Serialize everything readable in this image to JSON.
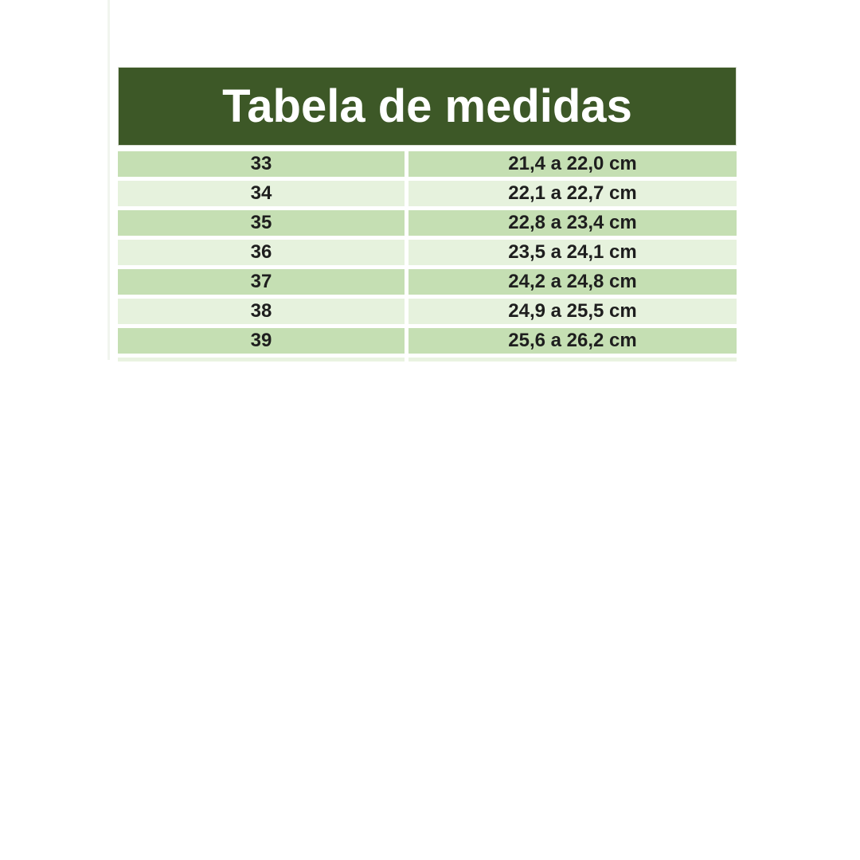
{
  "chart_data": {
    "type": "table",
    "title": "Tabela de medidas",
    "rows": [
      {
        "size": "33",
        "range": "21,4 a 22,0 cm"
      },
      {
        "size": "34",
        "range": "22,1 a 22,7 cm"
      },
      {
        "size": "35",
        "range": "22,8 a 23,4 cm"
      },
      {
        "size": "36",
        "range": "23,5 a 24,1 cm"
      },
      {
        "size": "37",
        "range": "24,2 a 24,8 cm"
      },
      {
        "size": "38",
        "range": "24,9 a 25,5 cm"
      },
      {
        "size": "39",
        "range": "25,6 a 26,2 cm"
      }
    ],
    "legend_position": "none",
    "grid": false
  },
  "colors": {
    "header_bg": "#3d5827",
    "header_text": "#ffffff",
    "header_border": "#d9ded3",
    "row_dark": "#c5dfb3",
    "row_light": "#e6f2dd",
    "row_text": "#1e1e1e",
    "sliver": "#e9f3e1",
    "edge_line": "#f1f5ee",
    "page_bg": "#ffffff"
  }
}
